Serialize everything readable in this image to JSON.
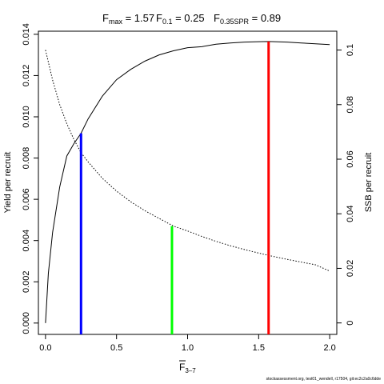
{
  "chart_data": {
    "type": "line",
    "title_parts": {
      "fmax_label": "F",
      "fmax_sub": "max",
      "fmax_value": "1.57",
      "f01_label": "F",
      "f01_sub": "0.1",
      "f01_value": "0.25",
      "fspr_label": "F",
      "fspr_sub": "0.35SPR",
      "fspr_value": "0.89",
      "equals": " = "
    },
    "xlabel_main": "F",
    "xlabel_sub": "3–7",
    "ylabel_left": "Yield per recruit",
    "ylabel_right": "SSB per recruit",
    "xlim": [
      -0.05,
      2.05
    ],
    "ylim_left": [
      -0.00055,
      0.01415
    ],
    "ylim_right": [
      -0.0042,
      0.1069
    ],
    "x_ticks": [
      0.0,
      0.5,
      1.0,
      1.5,
      2.0
    ],
    "x_tick_labels": [
      "0.0",
      "0.5",
      "1.0",
      "1.5",
      "2.0"
    ],
    "y_left_ticks": [
      0.0,
      0.002,
      0.004,
      0.006,
      0.008,
      0.01,
      0.012,
      0.014
    ],
    "y_left_tick_labels": [
      "0.000",
      "0.002",
      "0.004",
      "0.006",
      "0.008",
      "0.010",
      "0.012",
      "0.014"
    ],
    "y_right_ticks": [
      0,
      0.02,
      0.04,
      0.06,
      0.08,
      0.1
    ],
    "y_right_tick_labels": [
      "0",
      "0.02",
      "0.04",
      "0.06",
      "0.08",
      "0.1"
    ],
    "series": [
      {
        "axis": "left",
        "style": "solid",
        "x": [
          0.0,
          0.02,
          0.05,
          0.1,
          0.15,
          0.2,
          0.25,
          0.3,
          0.4,
          0.5,
          0.6,
          0.7,
          0.8,
          0.9,
          1.0,
          1.1,
          1.2,
          1.3,
          1.4,
          1.5,
          1.57,
          1.7,
          1.8,
          1.9,
          2.0
        ],
        "y": [
          0.0,
          0.0024,
          0.0044,
          0.0066,
          0.0081,
          0.0087,
          0.0092,
          0.0099,
          0.011,
          0.0118,
          0.0123,
          0.0127,
          0.013,
          0.0132,
          0.01335,
          0.0134,
          0.01352,
          0.01358,
          0.01362,
          0.01364,
          0.01365,
          0.01362,
          0.01358,
          0.01354,
          0.0135
        ]
      },
      {
        "axis": "right",
        "style": "dotted",
        "x": [
          0.0,
          0.05,
          0.1,
          0.15,
          0.2,
          0.25,
          0.3,
          0.4,
          0.5,
          0.6,
          0.7,
          0.8,
          0.9,
          1.0,
          1.1,
          1.2,
          1.3,
          1.4,
          1.5,
          1.6,
          1.7,
          1.8,
          1.9,
          2.0
        ],
        "y": [
          0.1,
          0.089,
          0.08,
          0.073,
          0.0672,
          0.0624,
          0.059,
          0.053,
          0.0483,
          0.0444,
          0.0411,
          0.0383,
          0.0355,
          0.0337,
          0.0317,
          0.0299,
          0.0283,
          0.0269,
          0.0256,
          0.0244,
          0.0233,
          0.0223,
          0.0213,
          0.019
        ]
      }
    ],
    "reference_lines": [
      {
        "x": 0.25,
        "y_left": 0.0092,
        "color": "#0000ff"
      },
      {
        "x": 0.89,
        "y_left": 0.0047,
        "color": "#00ff00"
      },
      {
        "x": 1.57,
        "y_left": 0.01365,
        "color": "#ff0000"
      }
    ],
    "footnote": "stockassessment.org, test01_wendell, r17504, git:ec2c2a0c6dde"
  }
}
